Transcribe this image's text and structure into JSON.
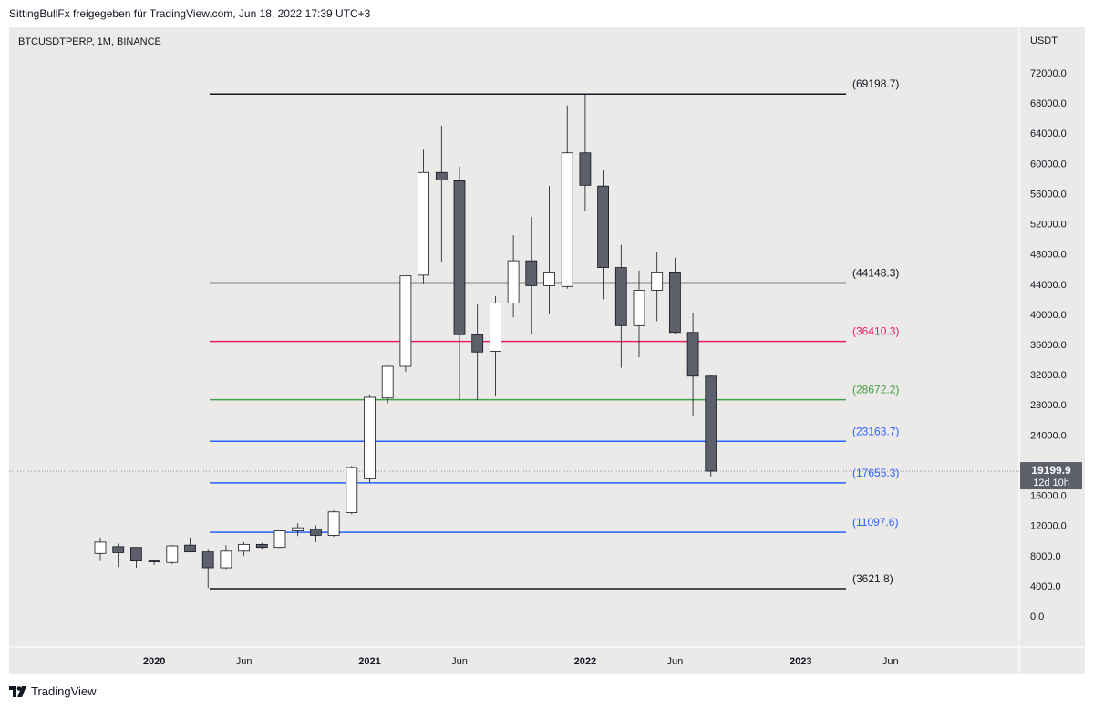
{
  "header": {
    "title": "SittingBullFx freigegeben für TradingView.com, Jun 18, 2022 17:39 UTC+3"
  },
  "chart": {
    "symbol": "BTCUSDTPERP, 1M, BINANCE",
    "currency": "USDT",
    "price_badge": {
      "price": "19199.9",
      "countdown": "12d 10h",
      "color": "#5d606b"
    }
  },
  "footer": {
    "brand": "TradingView"
  },
  "chart_data": {
    "type": "candlestick",
    "title": "",
    "yaxis": {
      "unit": "USDT",
      "ylim": [
        -500,
        74500
      ],
      "ticks": [
        "0.0",
        "4000.0",
        "8000.0",
        "12000.0",
        "16000.0",
        "20000.0",
        "24000.0",
        "28000.0",
        "32000.0",
        "36000.0",
        "40000.0",
        "44000.0",
        "48000.0",
        "52000.0",
        "56000.0",
        "60000.0",
        "64000.0",
        "68000.0",
        "72000.0"
      ],
      "tick_values": [
        0,
        4000,
        8000,
        12000,
        16000,
        20000,
        24000,
        28000,
        32000,
        36000,
        40000,
        44000,
        48000,
        52000,
        56000,
        60000,
        64000,
        68000,
        72000
      ]
    },
    "xaxis": {
      "labels": [
        "2020",
        "Jun",
        "2021",
        "Jun",
        "2022",
        "Jun",
        "2023",
        "Jun"
      ],
      "label_months": [
        "2020-01",
        "2020-06",
        "2021-01",
        "2021-06",
        "2022-01",
        "2022-06",
        "2023-01",
        "2023-06"
      ],
      "bold_labels": [
        "2020",
        "2021",
        "2022",
        "2023"
      ]
    },
    "colors": {
      "up": "#ffffff",
      "down": "#5d606b",
      "outline": "#131722"
    },
    "candles": [
      {
        "date": "2019-10",
        "open": 8300,
        "high": 10400,
        "low": 7300,
        "close": 9800
      },
      {
        "date": "2019-11",
        "open": 9200,
        "high": 9600,
        "low": 6500,
        "close": 8400
      },
      {
        "date": "2019-12",
        "open": 9100,
        "high": 9100,
        "low": 6400,
        "close": 7300
      },
      {
        "date": "2020-01",
        "open": 7300,
        "high": 7500,
        "low": 6800,
        "close": 7200
      },
      {
        "date": "2020-02",
        "open": 7100,
        "high": 9400,
        "low": 6900,
        "close": 9300
      },
      {
        "date": "2020-03",
        "open": 9400,
        "high": 10400,
        "low": 8500,
        "close": 8500
      },
      {
        "date": "2020-04",
        "open": 8500,
        "high": 8900,
        "low": 3700,
        "close": 6400
      },
      {
        "date": "2020-05",
        "open": 6400,
        "high": 9400,
        "low": 6200,
        "close": 8600
      },
      {
        "date": "2020-06",
        "open": 8600,
        "high": 9800,
        "low": 8000,
        "close": 9500
      },
      {
        "date": "2020-07",
        "open": 9500,
        "high": 9700,
        "low": 8900,
        "close": 9100
      },
      {
        "date": "2020-08",
        "open": 9100,
        "high": 11300,
        "low": 9000,
        "close": 11300
      },
      {
        "date": "2020-09",
        "open": 11300,
        "high": 12300,
        "low": 10600,
        "close": 11700
      },
      {
        "date": "2020-10",
        "open": 11500,
        "high": 12000,
        "low": 9800,
        "close": 10700
      },
      {
        "date": "2020-11",
        "open": 10700,
        "high": 14000,
        "low": 10500,
        "close": 13800
      },
      {
        "date": "2020-12",
        "open": 13700,
        "high": 19900,
        "low": 13500,
        "close": 19700
      },
      {
        "date": "2021-01",
        "open": 18200,
        "high": 29400,
        "low": 17700,
        "close": 29000
      },
      {
        "date": "2021-02",
        "open": 28900,
        "high": 33200,
        "low": 28200,
        "close": 33100
      },
      {
        "date": "2021-03",
        "open": 33100,
        "high": 45000,
        "low": 32400,
        "close": 45100
      },
      {
        "date": "2021-04",
        "open": 45200,
        "high": 61800,
        "low": 44000,
        "close": 58800
      },
      {
        "date": "2021-05",
        "open": 58800,
        "high": 65000,
        "low": 47000,
        "close": 57800
      },
      {
        "date": "2021-06",
        "open": 57700,
        "high": 59600,
        "low": 28600,
        "close": 37300
      },
      {
        "date": "2021-07",
        "open": 37300,
        "high": 41300,
        "low": 28600,
        "close": 35000
      },
      {
        "date": "2021-08",
        "open": 35100,
        "high": 42400,
        "low": 29100,
        "close": 41500
      },
      {
        "date": "2021-09",
        "open": 41500,
        "high": 50500,
        "low": 39600,
        "close": 47100
      },
      {
        "date": "2021-10",
        "open": 47100,
        "high": 52900,
        "low": 37300,
        "close": 43800
      },
      {
        "date": "2021-11",
        "open": 43800,
        "high": 57000,
        "low": 40000,
        "close": 45500
      },
      {
        "date": "2021-12",
        "open": 43700,
        "high": 67700,
        "low": 43400,
        "close": 61400
      },
      {
        "date": "2022-01",
        "open": 61400,
        "high": 69198.7,
        "low": 53700,
        "close": 57100
      },
      {
        "date": "2022-02",
        "open": 57000,
        "high": 59100,
        "low": 42000,
        "close": 46200
      },
      {
        "date": "2022-03",
        "open": 46200,
        "high": 49200,
        "low": 32900,
        "close": 38500
      },
      {
        "date": "2022-04",
        "open": 38500,
        "high": 45800,
        "low": 34300,
        "close": 43200
      },
      {
        "date": "2022-05",
        "open": 43200,
        "high": 48200,
        "low": 39100,
        "close": 45500
      },
      {
        "date": "2022-06",
        "open": 45500,
        "high": 47500,
        "low": 37400,
        "close": 37600
      },
      {
        "date": "2022-07",
        "open": 37600,
        "high": 40100,
        "low": 26500,
        "close": 31800
      },
      {
        "date": "2022-08",
        "open": 31800,
        "high": 31900,
        "low": 18500,
        "close": 19199.9
      }
    ],
    "levels": [
      {
        "label": "(69198.7)",
        "value": 69198.7,
        "color": "#131722"
      },
      {
        "label": "(44148.3)",
        "value": 44148.3,
        "color": "#131722"
      },
      {
        "label": "(36410.3)",
        "value": 36410.3,
        "color": "#e91e63"
      },
      {
        "label": "(28672.2)",
        "value": 28672.2,
        "color": "#43a047"
      },
      {
        "label": "(23163.7)",
        "value": 23163.7,
        "color": "#2962ff"
      },
      {
        "label": "(17655.3)",
        "value": 17655.3,
        "color": "#2962ff"
      },
      {
        "label": "(11097.6)",
        "value": 11097.6,
        "color": "#2962ff"
      },
      {
        "label": "(3621.8)",
        "value": 3621.8,
        "color": "#131722"
      }
    ],
    "last_price": 19199.9
  }
}
